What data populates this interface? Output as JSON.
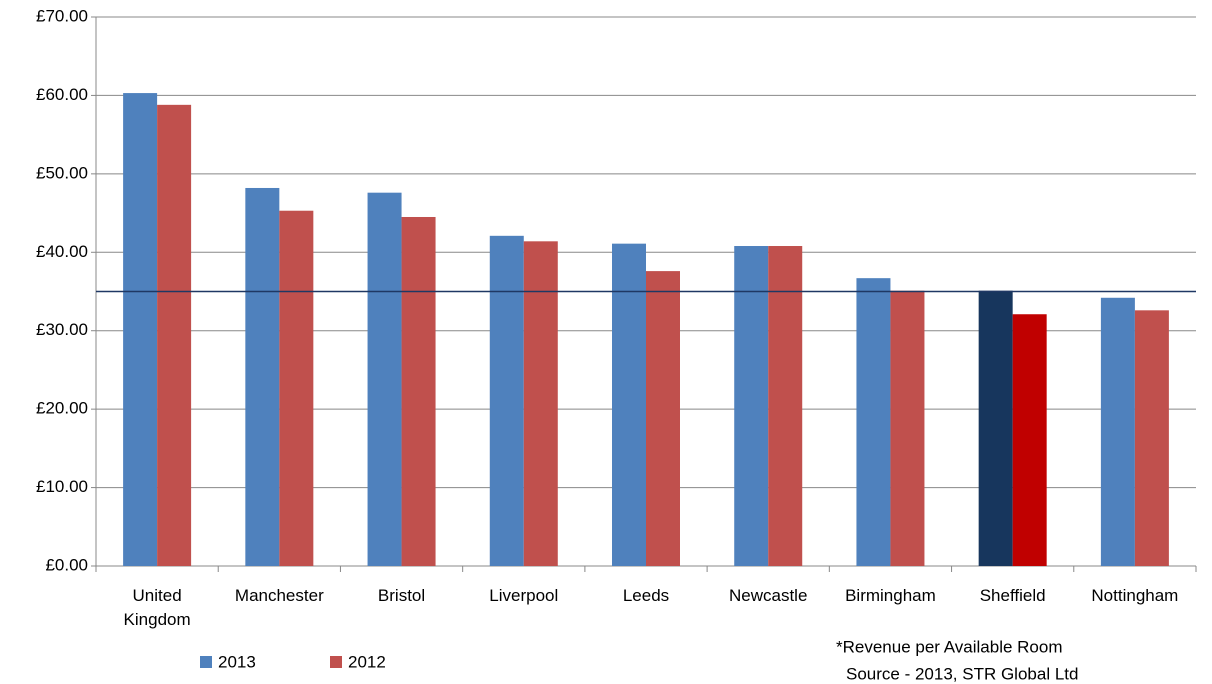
{
  "chart_data": {
    "type": "bar",
    "categories": [
      "United Kingdom",
      "Manchester",
      "Bristol",
      "Liverpool",
      "Leeds",
      "Newcastle",
      "Birmingham",
      "Sheffield",
      "Nottingham"
    ],
    "series": [
      {
        "name": "2013",
        "color": "#4f81bd",
        "point_colors": [
          "#4f81bd",
          "#4f81bd",
          "#4f81bd",
          "#4f81bd",
          "#4f81bd",
          "#4f81bd",
          "#4f81bd",
          "#17365d",
          "#4f81bd"
        ],
        "values": [
          60.3,
          48.2,
          47.6,
          42.1,
          41.1,
          40.8,
          36.7,
          35.1,
          34.2
        ]
      },
      {
        "name": "2012",
        "color": "#c0504d",
        "point_colors": [
          "#c0504d",
          "#c0504d",
          "#c0504d",
          "#c0504d",
          "#c0504d",
          "#c0504d",
          "#c0504d",
          "#c00000",
          "#c0504d"
        ],
        "values": [
          58.8,
          45.3,
          44.5,
          41.4,
          37.6,
          40.8,
          35.1,
          32.1,
          32.6
        ]
      }
    ],
    "reference_line": {
      "value": 35,
      "color": "#1f3864"
    },
    "ylim": [
      0,
      70
    ],
    "yticks": [
      {
        "value": 0,
        "label": "£0.00"
      },
      {
        "value": 10,
        "label": "£10.00"
      },
      {
        "value": 20,
        "label": "£20.00"
      },
      {
        "value": 30,
        "label": "£30.00"
      },
      {
        "value": 40,
        "label": "£40.00"
      },
      {
        "value": 50,
        "label": "£50.00"
      },
      {
        "value": 60,
        "label": "£60.00"
      },
      {
        "value": 70,
        "label": "£70.00"
      }
    ],
    "grid": true,
    "legend": "bottom-left",
    "annotations": [
      "*Revenue per Available Room",
      "Source - 2013, STR Global Ltd"
    ]
  }
}
